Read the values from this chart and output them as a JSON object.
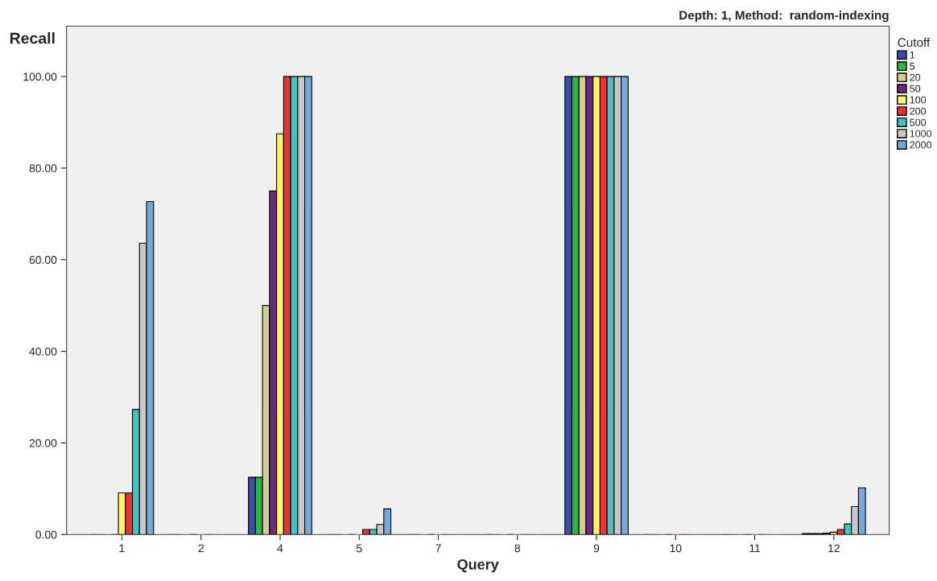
{
  "chart_data": {
    "type": "bar",
    "title": "Depth: 1, Method:  random-indexing",
    "xlabel": "Query",
    "ylabel": "Recall",
    "legend_title": "Cutoff",
    "categories": [
      "1",
      "2",
      "4",
      "5",
      "7",
      "8",
      "9",
      "10",
      "11",
      "12"
    ],
    "series": [
      {
        "name": "1",
        "color": "#3a4fa3",
        "values": [
          0,
          0,
          12.5,
          0,
          0,
          0,
          100,
          0,
          0,
          0.2
        ]
      },
      {
        "name": "5",
        "color": "#2db34a",
        "values": [
          0,
          0,
          12.5,
          0,
          0,
          0,
          100,
          0,
          0,
          0.2
        ]
      },
      {
        "name": "20",
        "color": "#d3cc97",
        "values": [
          0,
          0,
          50,
          0,
          0,
          0,
          100,
          0,
          0,
          0.2
        ]
      },
      {
        "name": "50",
        "color": "#6b2a7e",
        "values": [
          0,
          0,
          75,
          0,
          0,
          0,
          100,
          0,
          0,
          0.3
        ]
      },
      {
        "name": "100",
        "color": "#fbf46e",
        "values": [
          9.1,
          0,
          87.5,
          0,
          0,
          0,
          100,
          0,
          0,
          0.5
        ]
      },
      {
        "name": "200",
        "color": "#ee3333",
        "values": [
          9.1,
          0,
          100,
          1.1,
          0,
          0,
          100,
          0,
          0,
          1.1
        ]
      },
      {
        "name": "500",
        "color": "#45c3c0",
        "values": [
          27.3,
          0,
          100,
          1.1,
          0,
          0,
          100,
          0,
          0,
          2.3
        ]
      },
      {
        "name": "1000",
        "color": "#c8c8c8",
        "values": [
          63.6,
          0,
          100,
          2.2,
          0,
          0,
          100,
          0,
          0,
          6.1
        ]
      },
      {
        "name": "2000",
        "color": "#78a8d8",
        "values": [
          72.7,
          0,
          100,
          5.6,
          0,
          0,
          100,
          0,
          0,
          10.2
        ]
      }
    ],
    "ylim": [
      0,
      111
    ],
    "yticks": [
      {
        "value": 0,
        "label": "0.00"
      },
      {
        "value": 20,
        "label": "20.00"
      },
      {
        "value": 40,
        "label": "40.00"
      },
      {
        "value": 60,
        "label": "60.00"
      },
      {
        "value": 80,
        "label": "80.00"
      },
      {
        "value": 100,
        "label": "100.00"
      }
    ],
    "grid": false,
    "legend": "right"
  }
}
